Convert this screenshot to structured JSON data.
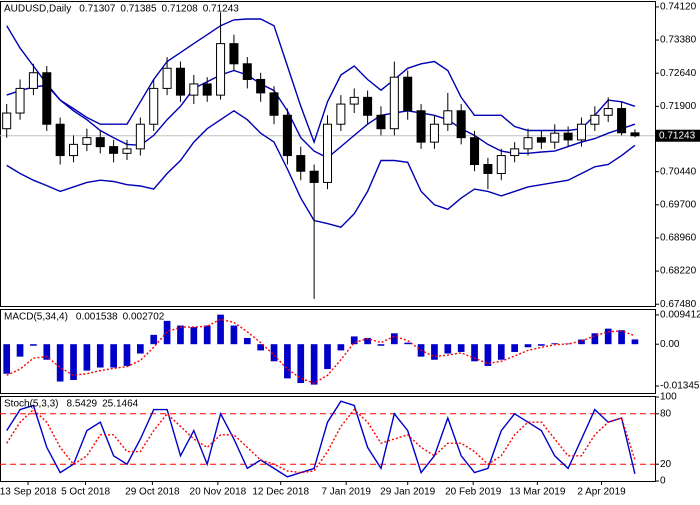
{
  "chart_data": [
    {
      "type": "candlestick",
      "title": "AUDUSD,Daily",
      "header_values": [
        0.71307,
        0.71385,
        0.71208,
        0.71243
      ],
      "xlim": [
        -0.5,
        48.5
      ],
      "ylim": [
        0.6744,
        0.7423
      ],
      "yticks": [
        {
          "value": 0.7412,
          "label": "0.74120"
        },
        {
          "value": 0.7338,
          "label": "0.73380"
        },
        {
          "value": 0.7264,
          "label": "0.72640"
        },
        {
          "value": 0.719,
          "label": "0.71900"
        },
        {
          "value": 0.7044,
          "label": "0.70440"
        },
        {
          "value": 0.697,
          "label": "0.69700"
        },
        {
          "value": 0.6896,
          "label": "0.68960"
        },
        {
          "value": 0.6822,
          "label": "0.68220"
        },
        {
          "value": 0.6748,
          "label": "0.67480"
        }
      ],
      "current_price": 0.71243,
      "current_price_color": "#c0c0c0",
      "color": "#000000",
      "open": [
        0.714,
        0.7175,
        0.723,
        0.7265,
        0.715,
        0.708,
        0.7105,
        0.712,
        0.71,
        0.7085,
        0.7095,
        0.715,
        0.723,
        0.7275,
        0.7215,
        0.724,
        0.7215,
        0.733,
        0.7285,
        0.725,
        0.722,
        0.717,
        0.708,
        0.7045,
        0.702,
        0.715,
        0.7195,
        0.721,
        0.717,
        0.714,
        0.7255,
        0.718,
        0.711,
        0.715,
        0.718,
        0.712,
        0.706,
        0.704,
        0.708,
        0.7095,
        0.712,
        0.711,
        0.713,
        0.7115,
        0.715,
        0.717,
        0.7185,
        0.71307
      ],
      "high": [
        0.7195,
        0.725,
        0.7285,
        0.728,
        0.7165,
        0.7125,
        0.714,
        0.7135,
        0.7115,
        0.7115,
        0.7165,
        0.725,
        0.73,
        0.729,
        0.726,
        0.7255,
        0.74,
        0.735,
        0.73,
        0.7265,
        0.7235,
        0.7185,
        0.71,
        0.706,
        0.717,
        0.7215,
        0.723,
        0.7225,
        0.719,
        0.729,
        0.727,
        0.7195,
        0.717,
        0.722,
        0.7195,
        0.7135,
        0.7075,
        0.7095,
        0.711,
        0.714,
        0.7135,
        0.715,
        0.7145,
        0.7165,
        0.719,
        0.721,
        0.72,
        0.71385
      ],
      "low": [
        0.712,
        0.716,
        0.7215,
        0.7135,
        0.706,
        0.7065,
        0.709,
        0.7085,
        0.7065,
        0.707,
        0.708,
        0.7135,
        0.7215,
        0.72,
        0.7195,
        0.72,
        0.7205,
        0.727,
        0.723,
        0.72,
        0.715,
        0.706,
        0.7025,
        0.676,
        0.7005,
        0.7135,
        0.7175,
        0.715,
        0.7125,
        0.7125,
        0.716,
        0.7095,
        0.7095,
        0.7135,
        0.7105,
        0.7045,
        0.7005,
        0.7025,
        0.7065,
        0.708,
        0.7095,
        0.7095,
        0.71,
        0.71,
        0.7135,
        0.7155,
        0.7125,
        0.71208
      ],
      "close": [
        0.7175,
        0.723,
        0.7265,
        0.715,
        0.708,
        0.7105,
        0.712,
        0.71,
        0.7085,
        0.7095,
        0.715,
        0.723,
        0.7275,
        0.7215,
        0.724,
        0.7215,
        0.733,
        0.7285,
        0.725,
        0.722,
        0.717,
        0.708,
        0.7045,
        0.702,
        0.715,
        0.7195,
        0.721,
        0.717,
        0.714,
        0.7255,
        0.718,
        0.711,
        0.715,
        0.718,
        0.712,
        0.706,
        0.704,
        0.708,
        0.7095,
        0.712,
        0.711,
        0.713,
        0.7115,
        0.715,
        0.717,
        0.7185,
        0.7131,
        0.71243
      ],
      "overlays": [
        {
          "color": "#0000b4",
          "values": [
            0.737,
            0.732,
            0.728,
            0.724,
            0.7204,
            0.7185,
            0.7165,
            0.715,
            0.715,
            0.715,
            0.72,
            0.725,
            0.729,
            0.731,
            0.733,
            0.735,
            0.737,
            0.7383,
            0.7385,
            0.7385,
            0.737,
            0.728,
            0.719,
            0.711,
            0.72,
            0.726,
            0.728,
            0.725,
            0.7226,
            0.725,
            0.7275,
            0.7285,
            0.729,
            0.727,
            0.721,
            0.717,
            0.717,
            0.717,
            0.7145,
            0.7136,
            0.7136,
            0.7136,
            0.7136,
            0.714,
            0.717,
            0.7204,
            0.72,
            0.719
          ]
        },
        {
          "color": "#0000b4",
          "values": [
            0.7215,
            0.7225,
            0.7233,
            0.7237,
            0.7204,
            0.718,
            0.716,
            0.7136,
            0.712,
            0.7105,
            0.7103,
            0.7125,
            0.716,
            0.719,
            0.723,
            0.7245,
            0.726,
            0.727,
            0.726,
            0.724,
            0.7225,
            0.718,
            0.712,
            0.709,
            0.7075,
            0.71,
            0.7125,
            0.715,
            0.717,
            0.7175,
            0.718,
            0.7175,
            0.717,
            0.716,
            0.714,
            0.7125,
            0.7105,
            0.709,
            0.7085,
            0.7085,
            0.7088,
            0.709,
            0.71,
            0.711,
            0.7118,
            0.713,
            0.714,
            0.715
          ]
        },
        {
          "color": "#0000b4",
          "values": [
            0.7058,
            0.704,
            0.7025,
            0.7013,
            0.7,
            0.701,
            0.702,
            0.7025,
            0.7022,
            0.7015,
            0.7012,
            0.7005,
            0.704,
            0.7069,
            0.711,
            0.714,
            0.716,
            0.718,
            0.716,
            0.713,
            0.711,
            0.705,
            0.6985,
            0.6935,
            0.6928,
            0.692,
            0.695,
            0.7,
            0.7069,
            0.7069,
            0.7065,
            0.7,
            0.697,
            0.696,
            0.6985,
            0.7005,
            0.7,
            0.699,
            0.7,
            0.701,
            0.7015,
            0.702,
            0.7025,
            0.704,
            0.7055,
            0.706,
            0.708,
            0.7103
          ]
        }
      ]
    },
    {
      "type": "macd",
      "title": "MACD(5,34,4)",
      "header_values": [
        0.001538,
        0.002702
      ],
      "ylim": [
        -0.0157,
        0.011
      ],
      "yticks": [
        0.009412,
        {
          "value": 0,
          "label": "0.00"
        },
        -0.013459
      ],
      "color": "#0000c8",
      "values": [
        -0.0095,
        -0.004,
        -0.0005,
        -0.005,
        -0.012,
        -0.0115,
        -0.0085,
        -0.0075,
        -0.0075,
        -0.007,
        -0.003,
        0.003,
        0.0075,
        0.006,
        0.0055,
        0.006,
        0.0095,
        0.006,
        0.002,
        -0.002,
        -0.0055,
        -0.011,
        -0.0125,
        -0.013,
        -0.008,
        -0.002,
        0.0025,
        0.002,
        -0.0005,
        0.0035,
        0.0005,
        -0.004,
        -0.005,
        -0.003,
        -0.0025,
        -0.0055,
        -0.007,
        -0.005,
        -0.0025,
        -0.001,
        -0.0005,
        0.0003,
        0.0002,
        0.0015,
        0.0035,
        0.005,
        0.0045,
        0.001538
      ],
      "signal": {
        "color": "#ff0000",
        "values": [
          -0.01,
          -0.008,
          -0.0045,
          -0.004,
          -0.0075,
          -0.01,
          -0.0095,
          -0.0085,
          -0.0078,
          -0.0072,
          -0.0052,
          -0.001,
          0.004,
          0.0055,
          0.0055,
          0.0058,
          0.008,
          0.007,
          0.004,
          0.0005,
          -0.0035,
          -0.008,
          -0.011,
          -0.0125,
          -0.01,
          -0.005,
          0.0005,
          0.0018,
          0.0005,
          0.0025,
          0.0012,
          -0.002,
          -0.004,
          -0.0035,
          -0.0028,
          -0.0045,
          -0.0062,
          -0.0055,
          -0.0038,
          -0.002,
          -0.001,
          -0.0002,
          0.0001,
          0.001,
          0.0027,
          0.004,
          0.0043,
          0.002702
        ]
      }
    },
    {
      "type": "stochastic",
      "title": "Stoch(5,3,3)",
      "header_values": [
        8.5429,
        25.1464
      ],
      "ylim": [
        0,
        100
      ],
      "yticks": [
        0,
        20,
        80,
        100
      ],
      "levels": [
        80,
        20
      ],
      "level_color": "#ff0000",
      "xticks": [
        {
          "value": 1.6,
          "label": "13 Sep 2018"
        },
        {
          "value": 5.9,
          "label": "5 Oct 2018"
        },
        {
          "value": 10.9,
          "label": "29 Oct 2018"
        },
        {
          "value": 15.8,
          "label": "20 Nov 2018"
        },
        {
          "value": 20.5,
          "label": "12 Dec 2018"
        },
        {
          "value": 25.4,
          "label": "7 Jan 2019"
        },
        {
          "value": 30.0,
          "label": "29 Jan 2019"
        },
        {
          "value": 34.9,
          "label": "20 Feb 2019"
        },
        {
          "value": 39.7,
          "label": "13 Mar 2019"
        },
        {
          "value": 44.5,
          "label": "2 Apr 2019"
        }
      ],
      "main": {
        "color": "#0000c8",
        "values": [
          60,
          85,
          90,
          40,
          10,
          20,
          60,
          70,
          30,
          20,
          50,
          85,
          85,
          30,
          60,
          20,
          80,
          50,
          15,
          25,
          15,
          5,
          10,
          15,
          70,
          95,
          90,
          40,
          15,
          80,
          60,
          10,
          30,
          75,
          30,
          10,
          15,
          60,
          80,
          70,
          60,
          30,
          15,
          50,
          85,
          70,
          75,
          8.5429
        ]
      },
      "signal": {
        "color": "#ff0000",
        "values": [
          45,
          70,
          85,
          70,
          40,
          20,
          30,
          55,
          55,
          35,
          35,
          60,
          80,
          65,
          50,
          40,
          55,
          55,
          40,
          25,
          20,
          12,
          10,
          12,
          35,
          65,
          85,
          70,
          45,
          50,
          55,
          40,
          30,
          45,
          45,
          35,
          20,
          30,
          55,
          70,
          70,
          50,
          30,
          30,
          55,
          70,
          75,
          25.1464
        ]
      }
    }
  ]
}
